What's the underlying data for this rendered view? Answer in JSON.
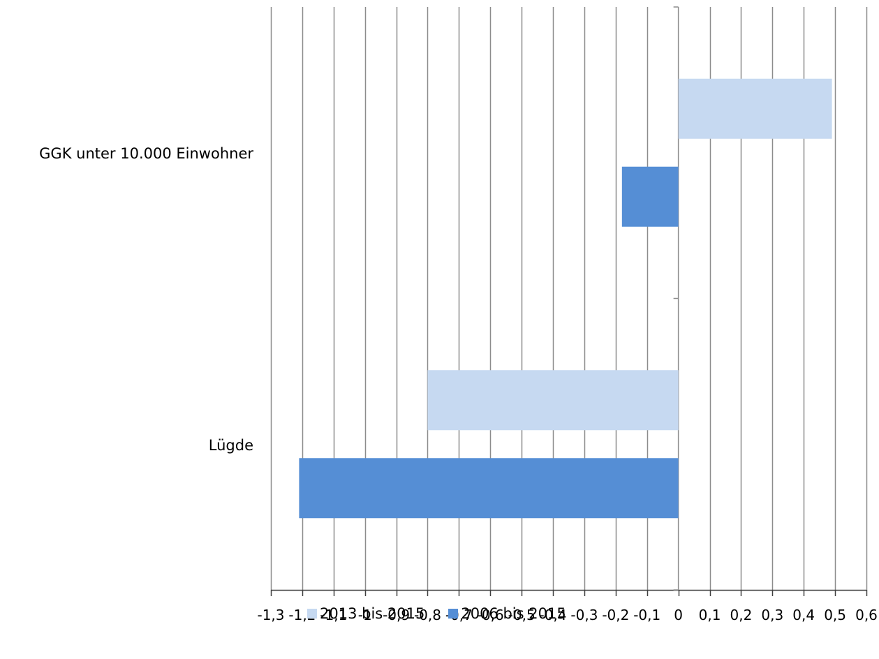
{
  "chart_data": {
    "type": "bar",
    "orientation": "horizontal",
    "categories": [
      "GGK unter 10.000 Einwohner",
      "Lügde"
    ],
    "series": [
      {
        "name": "2013 bis 2015",
        "color": "#c6d9f1",
        "values": [
          0.49,
          -0.8
        ]
      },
      {
        "name": "2006 bis 2015",
        "color": "#558ed5",
        "values": [
          -0.18,
          -1.21
        ]
      }
    ],
    "xlim": [
      -1.3,
      0.6
    ],
    "x_ticks": [
      -1.3,
      -1.2,
      -1.1,
      -1.0,
      -0.9,
      -0.8,
      -0.7,
      -0.6,
      -0.5,
      -0.4,
      -0.3,
      -0.2,
      -0.1,
      0,
      0.1,
      0.2,
      0.3,
      0.4,
      0.5,
      0.6
    ],
    "x_tick_labels": [
      "-1,3",
      "-1,2",
      "-1,1",
      "-1",
      "-0,9",
      "-0,8",
      "-0,7",
      "-0,6",
      "-0,5",
      "-0,4",
      "-0,3",
      "-0,2",
      "-0,1",
      "0",
      "0,1",
      "0,2",
      "0,3",
      "0,4",
      "0,5",
      "0,6"
    ],
    "grid": true,
    "legend": "bottom",
    "title": "",
    "xlabel": "",
    "ylabel": ""
  }
}
